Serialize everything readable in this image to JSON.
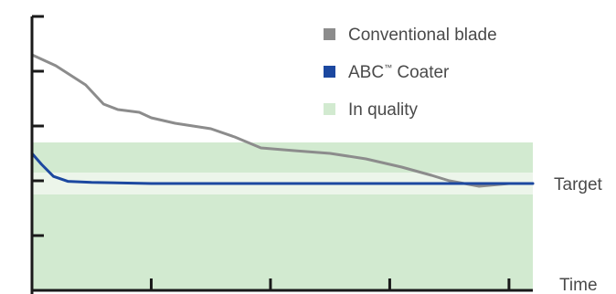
{
  "chart_data": {
    "type": "line",
    "title": "",
    "xlabel": "Time",
    "ylabel": "",
    "ylim": [
      0,
      5
    ],
    "xlim": [
      0,
      4.2
    ],
    "grid": false,
    "legend_position": "top-right",
    "target_value": 1.95,
    "target_label": "Target",
    "in_quality_band": [
      0,
      2.7
    ],
    "series": [
      {
        "name": "Conventional blade",
        "color": "#8c8c8c",
        "x": [
          0.0,
          0.2,
          0.45,
          0.6,
          0.72,
          0.9,
          1.0,
          1.2,
          1.5,
          1.7,
          1.92,
          2.2,
          2.5,
          2.8,
          3.1,
          3.35,
          3.5,
          3.75,
          4.0,
          4.2
        ],
        "y": [
          4.3,
          4.1,
          3.75,
          3.4,
          3.3,
          3.25,
          3.15,
          3.05,
          2.95,
          2.8,
          2.6,
          2.55,
          2.5,
          2.4,
          2.25,
          2.1,
          2.0,
          1.9,
          1.95,
          1.95
        ]
      },
      {
        "name": "ABC™ Coater",
        "color": "#1c48a0",
        "x": [
          0.0,
          0.08,
          0.18,
          0.3,
          0.5,
          1.0,
          2.0,
          3.0,
          3.6,
          4.2
        ],
        "y": [
          2.5,
          2.3,
          2.08,
          1.99,
          1.97,
          1.95,
          1.95,
          1.95,
          1.95,
          1.95
        ]
      }
    ],
    "legend": [
      {
        "label": "Conventional blade",
        "color": "#8c8c8c"
      },
      {
        "label": "ABC",
        "sup": "™",
        "suffix": " Coater",
        "color": "#1c48a0"
      },
      {
        "label": "In quality",
        "color": "#d2ead0"
      }
    ]
  },
  "colors": {
    "axis": "#1a1a1a",
    "band": "#d2ead0",
    "target_band": "#ecf5ea",
    "text": "#4a4a4a"
  }
}
